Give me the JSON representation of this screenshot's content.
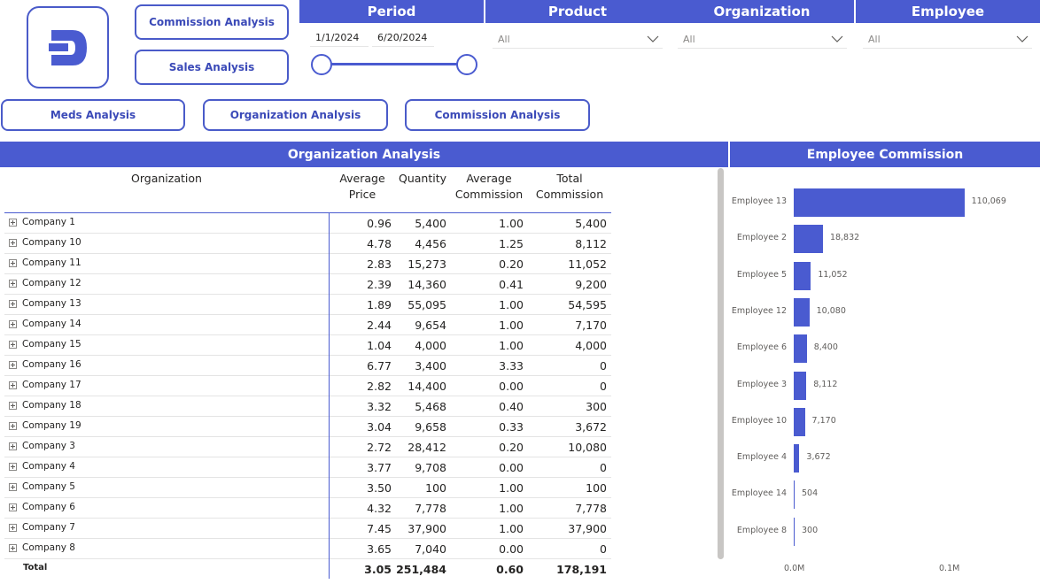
{
  "nav": {
    "commission_analysis_top": "Commission Analysis",
    "sales_analysis": "Sales Analysis",
    "meds_analysis": "Meds Analysis",
    "organization_analysis": "Organization Analysis",
    "commission_analysis_bottom": "Commission Analysis"
  },
  "filters": {
    "period": {
      "title": "Period",
      "start": "1/1/2024",
      "end": "6/20/2024"
    },
    "product": {
      "title": "Product",
      "value": "All"
    },
    "organization": {
      "title": "Organization",
      "value": "All"
    },
    "employee": {
      "title": "Employee",
      "value": "All"
    }
  },
  "org_table": {
    "title": "Organization Analysis",
    "columns": {
      "organization": "Organization",
      "avg_price_1": "Average",
      "avg_price_2": "Price",
      "quantity": "Quantity",
      "avg_comm_1": "Average",
      "avg_comm_2": "Commission",
      "total_comm_1": "Total",
      "total_comm_2": "Commission"
    },
    "rows": [
      {
        "org": "Company 1",
        "price": "0.96",
        "qty": "5,400",
        "comm": "1.00",
        "total": "5,400"
      },
      {
        "org": "Company 10",
        "price": "4.78",
        "qty": "4,456",
        "comm": "1.25",
        "total": "8,112"
      },
      {
        "org": "Company 11",
        "price": "2.83",
        "qty": "15,273",
        "comm": "0.20",
        "total": "11,052"
      },
      {
        "org": "Company 12",
        "price": "2.39",
        "qty": "14,360",
        "comm": "0.41",
        "total": "9,200"
      },
      {
        "org": "Company 13",
        "price": "1.89",
        "qty": "55,095",
        "comm": "1.00",
        "total": "54,595"
      },
      {
        "org": "Company 14",
        "price": "2.44",
        "qty": "9,654",
        "comm": "1.00",
        "total": "7,170"
      },
      {
        "org": "Company 15",
        "price": "1.04",
        "qty": "4,000",
        "comm": "1.00",
        "total": "4,000"
      },
      {
        "org": "Company 16",
        "price": "6.77",
        "qty": "3,400",
        "comm": "3.33",
        "total": "0"
      },
      {
        "org": "Company 17",
        "price": "2.82",
        "qty": "14,400",
        "comm": "0.00",
        "total": "0"
      },
      {
        "org": "Company 18",
        "price": "3.32",
        "qty": "5,468",
        "comm": "0.40",
        "total": "300"
      },
      {
        "org": "Company 19",
        "price": "3.04",
        "qty": "9,658",
        "comm": "0.33",
        "total": "3,672"
      },
      {
        "org": "Company 3",
        "price": "2.72",
        "qty": "28,412",
        "comm": "0.20",
        "total": "10,080"
      },
      {
        "org": "Company 4",
        "price": "3.77",
        "qty": "9,708",
        "comm": "0.00",
        "total": "0"
      },
      {
        "org": "Company 5",
        "price": "3.50",
        "qty": "100",
        "comm": "1.00",
        "total": "100"
      },
      {
        "org": "Company 6",
        "price": "4.32",
        "qty": "7,778",
        "comm": "1.00",
        "total": "7,778"
      },
      {
        "org": "Company 7",
        "price": "7.45",
        "qty": "37,900",
        "comm": "1.00",
        "total": "37,900"
      },
      {
        "org": "Company 8",
        "price": "3.65",
        "qty": "7,040",
        "comm": "0.00",
        "total": "0"
      }
    ],
    "total": {
      "org": "Total",
      "price": "3.05",
      "qty": "251,484",
      "comm": "0.60",
      "total": "178,191"
    }
  },
  "chart_data": {
    "type": "bar",
    "title": "Employee Commission",
    "orientation": "horizontal",
    "categories": [
      "Employee 13",
      "Employee 2",
      "Employee 5",
      "Employee 12",
      "Employee 6",
      "Employee 3",
      "Employee 10",
      "Employee 4",
      "Employee 14",
      "Employee 8"
    ],
    "values": [
      110069,
      18832,
      11052,
      10080,
      8400,
      8112,
      7170,
      3672,
      504,
      300
    ],
    "value_labels": [
      "110,069",
      "18,832",
      "11,052",
      "10,080",
      "8,400",
      "8,112",
      "7,170",
      "3,672",
      "504",
      "300"
    ],
    "x_ticks": [
      "0.0M",
      "0.1M"
    ],
    "xlim": [
      0,
      120000
    ],
    "color": "#4a5bd0"
  },
  "colors": {
    "accent": "#4a5bd0"
  }
}
